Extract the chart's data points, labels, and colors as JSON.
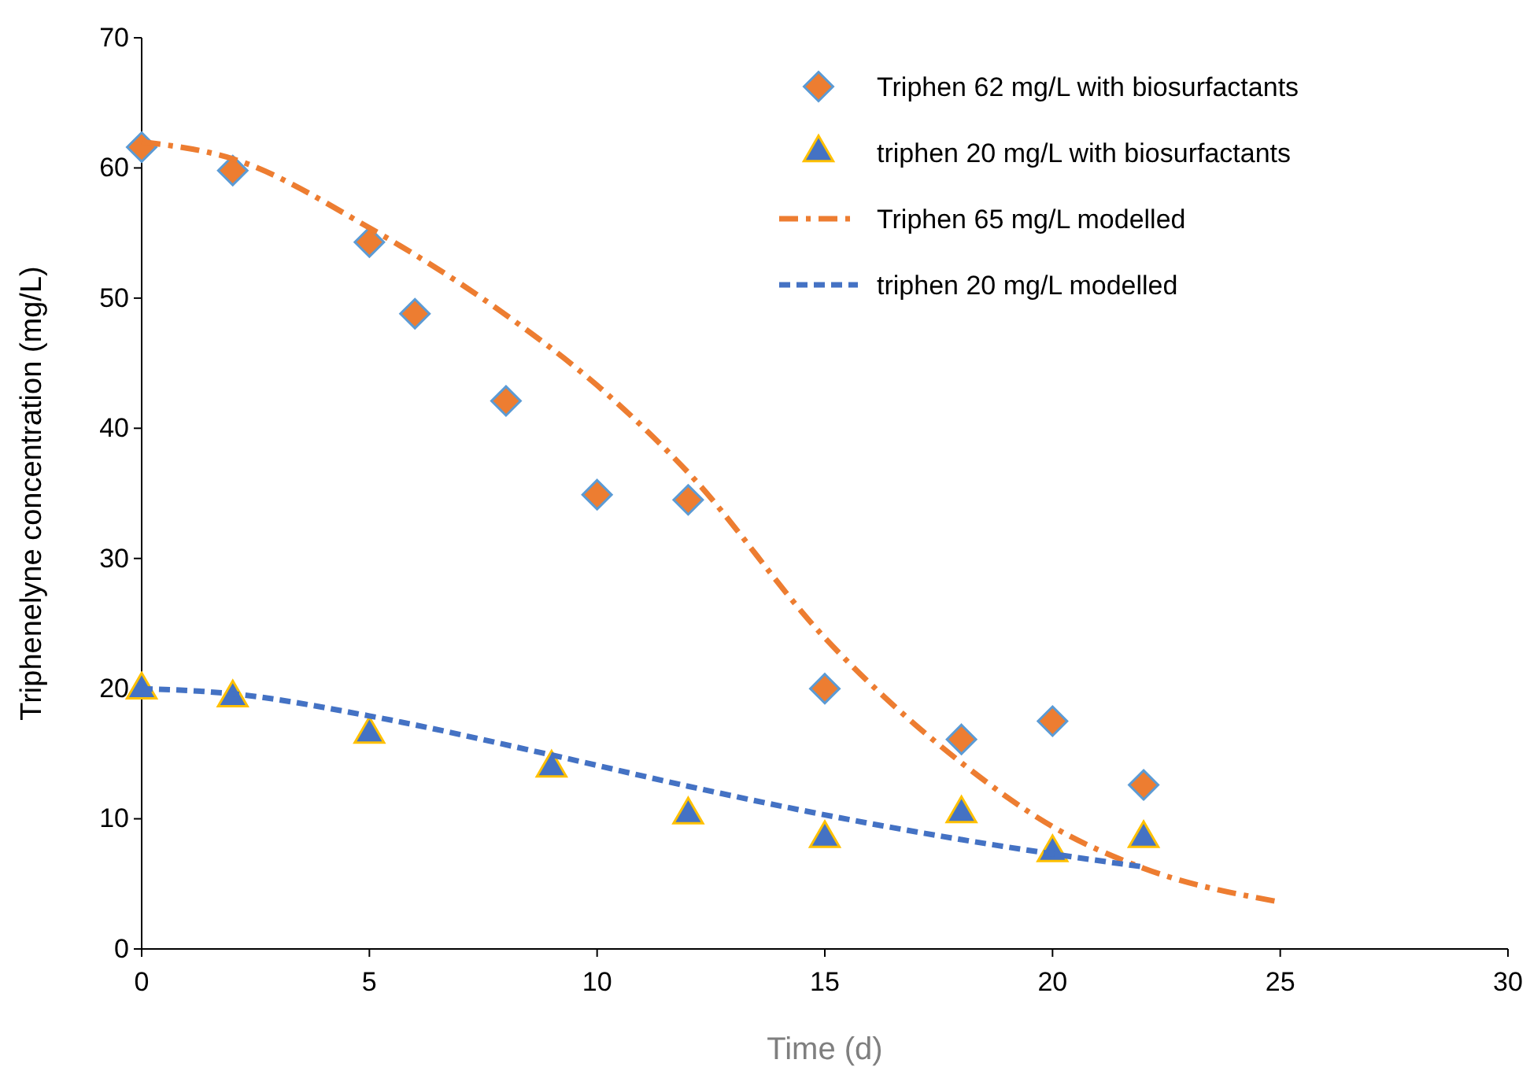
{
  "chart_data": {
    "type": "scatter",
    "xlabel": "Time (d)",
    "ylabel": "Triphenelyne concentration (mg/L)",
    "xlim": [
      0,
      30
    ],
    "xticks": [
      0,
      5,
      10,
      15,
      20,
      25,
      30
    ],
    "ylim": [
      0,
      70
    ],
    "yticks": [
      0,
      10,
      20,
      30,
      40,
      50,
      60,
      70
    ],
    "grid": false,
    "legend": "top right",
    "series": [
      {
        "name": "Triphen 62 mg/L with biosurfactants",
        "marker": "diamond",
        "color": "#ed7d31",
        "x": [
          0,
          2,
          5,
          6,
          8,
          10,
          12,
          15,
          18,
          20,
          22
        ],
        "values": [
          61.6,
          59.8,
          54.3,
          48.8,
          42.1,
          34.9,
          34.5,
          20.0,
          16.1,
          17.5,
          12.6
        ]
      },
      {
        "name": "triphen 20 mg/L with biosurfactants",
        "marker": "triangle",
        "color": "#4472c4",
        "x": [
          0,
          2,
          5,
          9,
          12,
          15,
          18,
          20,
          22
        ],
        "values": [
          19.9,
          19.3,
          16.5,
          13.9,
          10.3,
          8.5,
          10.4,
          7.4,
          8.5
        ]
      },
      {
        "name": "Triphen 65 mg/L modelled",
        "type": "line",
        "line_style": "dashdot",
        "color": "#ed7d31",
        "x": [
          0,
          2,
          5,
          8,
          10,
          12,
          15,
          18,
          20,
          22,
          25
        ],
        "values": [
          62,
          60.7,
          55.4,
          48.7,
          43.3,
          36.6,
          23.9,
          14.3,
          9.4,
          6.2,
          3.6
        ]
      },
      {
        "name": "triphen 20 mg/L modelled",
        "type": "line",
        "line_style": "dashed",
        "color": "#4472c4",
        "x": [
          0,
          2,
          5,
          9,
          12,
          15,
          18,
          20,
          22
        ],
        "values": [
          20,
          19.6,
          17.9,
          14.9,
          12.5,
          10.3,
          8.4,
          7.3,
          6.3
        ]
      }
    ]
  }
}
